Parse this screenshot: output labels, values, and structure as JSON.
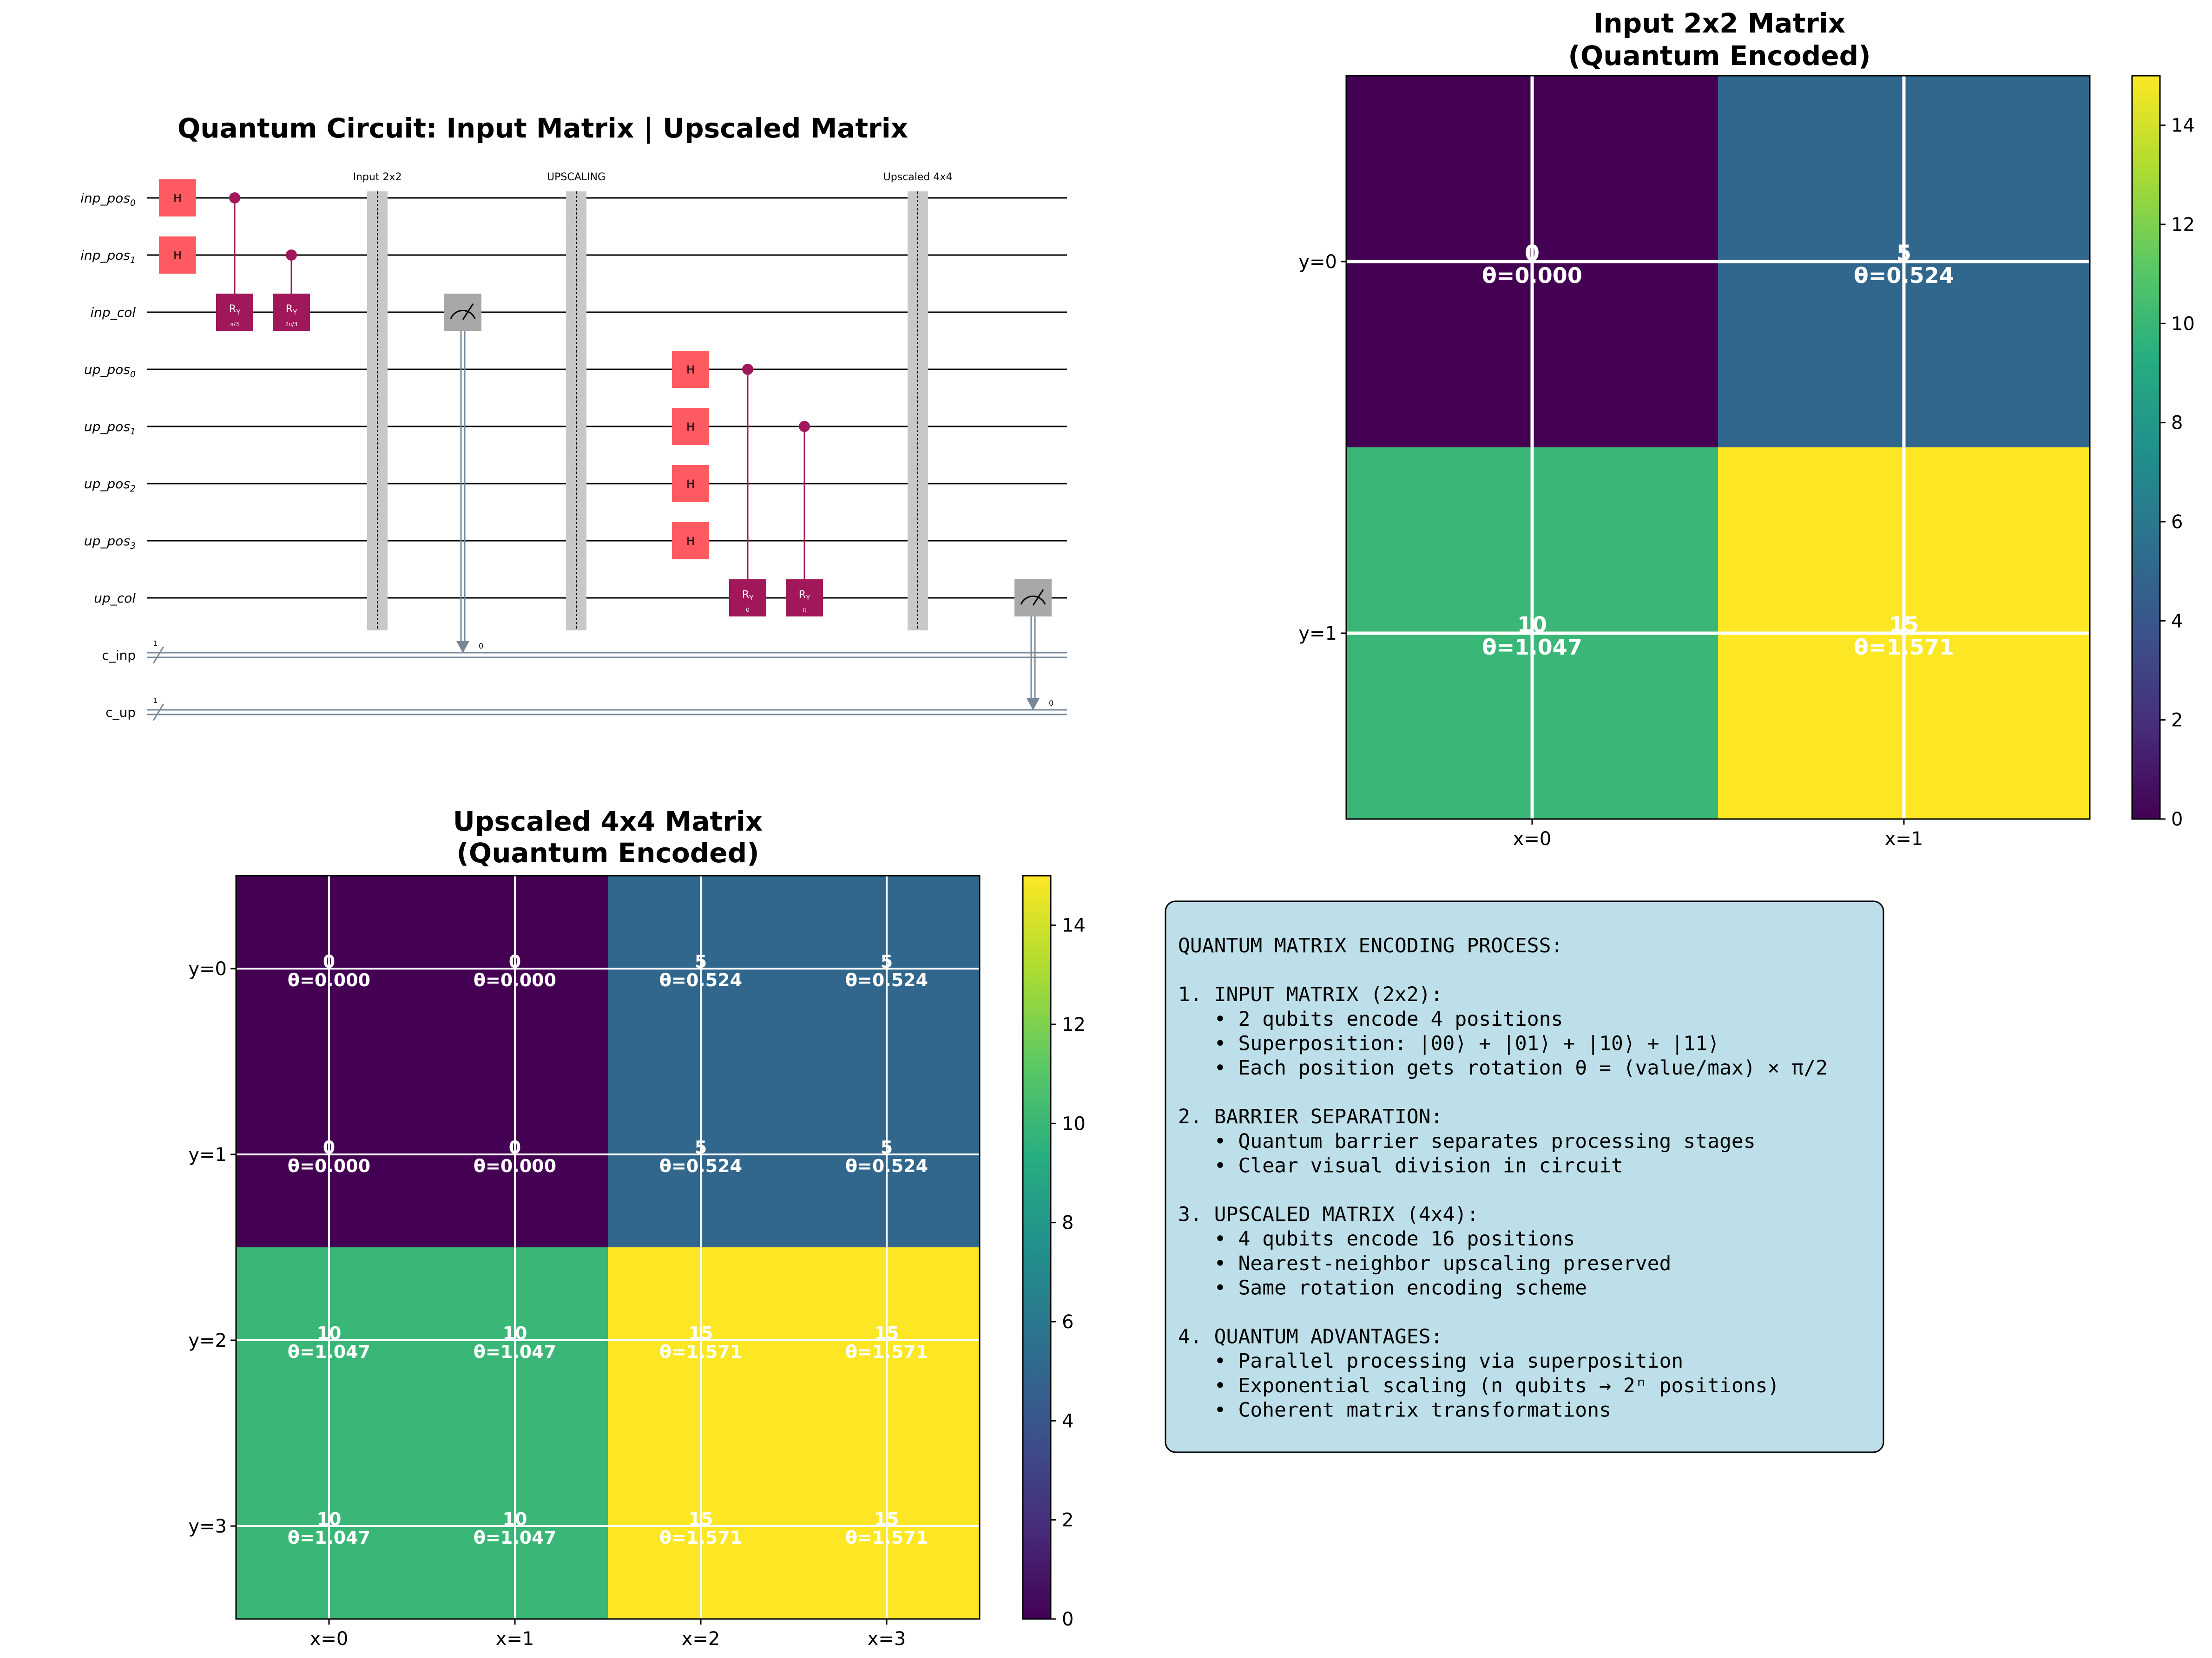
{
  "colors": {
    "h_gate": "#ff5a62",
    "ry_gate": "#a0185a",
    "control": "#a0185a",
    "barrier": "#c8c8c8",
    "measure": "#a8a8a8",
    "classical": "#778899",
    "textbox_bg": "#bddfe9",
    "grid": "#ffffff"
  },
  "circuit": {
    "title": "Quantum Circuit: Input Matrix | Upscaled Matrix",
    "qubits": [
      {
        "name": "inp_pos",
        "sub": "0"
      },
      {
        "name": "inp_pos",
        "sub": "1"
      },
      {
        "name": "inp_col",
        "sub": ""
      },
      {
        "name": "up_pos",
        "sub": "0"
      },
      {
        "name": "up_pos",
        "sub": "1"
      },
      {
        "name": "up_pos",
        "sub": "2"
      },
      {
        "name": "up_pos",
        "sub": "3"
      },
      {
        "name": "up_col",
        "sub": ""
      }
    ],
    "clbits": [
      {
        "name": "c_inp",
        "width": "1"
      },
      {
        "name": "c_up",
        "width": "1"
      }
    ],
    "barrier_labels": [
      "Input 2x2",
      "UPSCALING",
      "Upscaled 4x4"
    ],
    "h_label": "H",
    "ry_label": "R",
    "ry_sub": "Y",
    "ry_params": [
      "π/3",
      "2π/3",
      "0",
      "π"
    ],
    "measure_bits": [
      "0",
      "0"
    ]
  },
  "chart_data": [
    {
      "type": "heatmap",
      "title": "Input 2x2 Matrix",
      "subtitle": "(Quantum Encoded)",
      "x_ticks": [
        "x=0",
        "x=1"
      ],
      "y_ticks": [
        "y=0",
        "y=1"
      ],
      "values": [
        [
          0,
          5
        ],
        [
          10,
          15
        ]
      ],
      "theta": [
        [
          "θ=0.000",
          "θ=0.524"
        ],
        [
          "θ=1.047",
          "θ=1.571"
        ]
      ],
      "colormap": "viridis",
      "clim": [
        0,
        15
      ],
      "colorbar_ticks": [
        "0",
        "2",
        "4",
        "6",
        "8",
        "10",
        "12",
        "14"
      ]
    },
    {
      "type": "heatmap",
      "title": "Upscaled 4x4 Matrix",
      "subtitle": "(Quantum Encoded)",
      "x_ticks": [
        "x=0",
        "x=1",
        "x=2",
        "x=3"
      ],
      "y_ticks": [
        "y=0",
        "y=1",
        "y=2",
        "y=3"
      ],
      "values": [
        [
          0,
          0,
          5,
          5
        ],
        [
          0,
          0,
          5,
          5
        ],
        [
          10,
          10,
          15,
          15
        ],
        [
          10,
          10,
          15,
          15
        ]
      ],
      "theta": [
        [
          "θ=0.000",
          "θ=0.000",
          "θ=0.524",
          "θ=0.524"
        ],
        [
          "θ=0.000",
          "θ=0.000",
          "θ=0.524",
          "θ=0.524"
        ],
        [
          "θ=1.047",
          "θ=1.047",
          "θ=1.571",
          "θ=1.571"
        ],
        [
          "θ=1.047",
          "θ=1.047",
          "θ=1.571",
          "θ=1.571"
        ]
      ],
      "colormap": "viridis",
      "clim": [
        0,
        15
      ],
      "colorbar_ticks": [
        "0",
        "2",
        "4",
        "6",
        "8",
        "10",
        "12",
        "14"
      ]
    }
  ],
  "textbox": {
    "lines": [
      "QUANTUM MATRIX ENCODING PROCESS:",
      "",
      "1. INPUT MATRIX (2x2):",
      "   • 2 qubits encode 4 positions",
      "   • Superposition: |00⟩ + |01⟩ + |10⟩ + |11⟩",
      "   • Each position gets rotation θ = (value/max) × π/2",
      "",
      "2. BARRIER SEPARATION:",
      "   • Quantum barrier separates processing stages",
      "   • Clear visual division in circuit",
      "",
      "3. UPSCALED MATRIX (4x4):",
      "   • 4 qubits encode 16 positions",
      "   • Nearest-neighbor upscaling preserved",
      "   • Same rotation encoding scheme",
      "",
      "4. QUANTUM ADVANTAGES:",
      "   • Parallel processing via superposition",
      "   • Exponential scaling (n qubits → 2ⁿ positions)",
      "   • Coherent matrix transformations"
    ]
  }
}
